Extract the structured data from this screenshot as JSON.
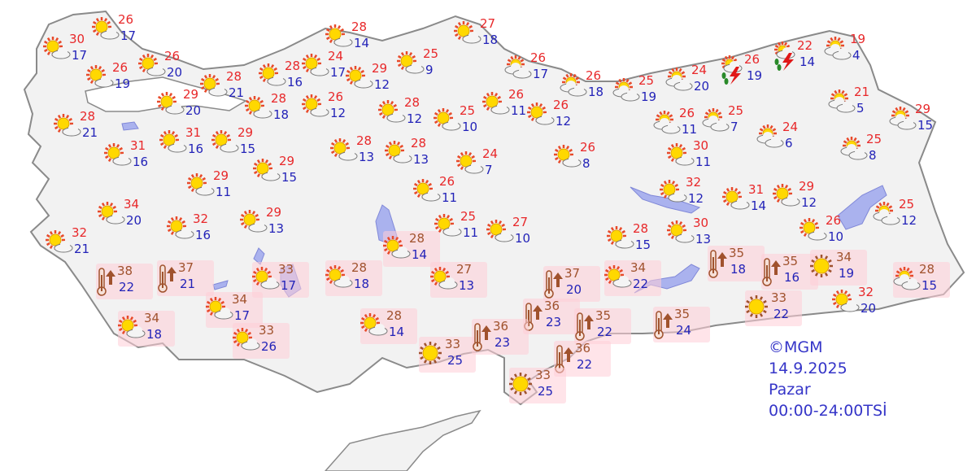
{
  "legend": {
    "source": "©MGM",
    "date": "14.9.2025",
    "day": "Pazar",
    "period": "00:00-24:00TSİ"
  },
  "colors": {
    "high": "#e8282a",
    "low": "#2323b8",
    "high_warning": "#a0522d",
    "warning_bg": "#ffd0d8",
    "land": "#f2f2f2",
    "lake": "#aab2ee"
  },
  "cities": [
    {
      "hi": "30",
      "lo": "17",
      "icon": "sun-cloud"
    },
    {
      "hi": "26",
      "lo": "17",
      "icon": "sun-cloud"
    },
    {
      "hi": "26",
      "lo": "19",
      "icon": "sun-cloud"
    },
    {
      "hi": "26",
      "lo": "20",
      "icon": "sun-cloud"
    },
    {
      "hi": "29",
      "lo": "20",
      "icon": "sun-cloud"
    },
    {
      "hi": "28",
      "lo": "21",
      "icon": "sun-cloud"
    },
    {
      "hi": "28",
      "lo": "21",
      "icon": "sun-cloud"
    },
    {
      "hi": "31",
      "lo": "16",
      "icon": "sun-cloud"
    },
    {
      "hi": "31",
      "lo": "16",
      "icon": "sun-cloud"
    },
    {
      "hi": "29",
      "lo": "15",
      "icon": "sun-cloud"
    },
    {
      "hi": "29",
      "lo": "15",
      "icon": "sun-cloud"
    },
    {
      "hi": "29",
      "lo": "11",
      "icon": "sun-cloud"
    },
    {
      "hi": "34",
      "lo": "20",
      "icon": "sun-cloud"
    },
    {
      "hi": "32",
      "lo": "16",
      "icon": "sun-cloud"
    },
    {
      "hi": "29",
      "lo": "13",
      "icon": "sun-cloud"
    },
    {
      "hi": "32",
      "lo": "21",
      "icon": "sun-cloud"
    },
    {
      "hi": "38",
      "lo": "22",
      "icon": "hot-thermometer",
      "warn": true
    },
    {
      "hi": "37",
      "lo": "21",
      "icon": "hot-thermometer",
      "warn": true
    },
    {
      "hi": "33",
      "lo": "17",
      "icon": "sun-cloud",
      "warn": true
    },
    {
      "hi": "34",
      "lo": "17",
      "icon": "sun-cloud",
      "warn": true
    },
    {
      "hi": "34",
      "lo": "18",
      "icon": "sun-cloud",
      "warn": true
    },
    {
      "hi": "33",
      "lo": "26",
      "icon": "sun-cloud",
      "warn": true
    },
    {
      "hi": "28",
      "lo": "18",
      "icon": "sun-cloud",
      "warn": true
    },
    {
      "hi": "28",
      "lo": "14",
      "icon": "sun-cloud",
      "warn": true
    },
    {
      "hi": "33",
      "lo": "25",
      "icon": "sunny",
      "warn": true
    },
    {
      "hi": "27",
      "lo": "13",
      "icon": "sun-cloud",
      "warn": true
    },
    {
      "hi": "28",
      "lo": "14",
      "icon": "sun-cloud",
      "warn": true
    },
    {
      "hi": "28",
      "lo": "14",
      "icon": "sun-cloud"
    },
    {
      "hi": "24",
      "lo": "17",
      "icon": "sun-cloud"
    },
    {
      "hi": "28",
      "lo": "16",
      "icon": "sun-cloud"
    },
    {
      "hi": "29",
      "lo": "12",
      "icon": "sun-cloud"
    },
    {
      "hi": "28",
      "lo": "18",
      "icon": "sun-cloud"
    },
    {
      "hi": "26",
      "lo": "12",
      "icon": "sun-cloud"
    },
    {
      "hi": "25",
      "lo": "9",
      "icon": "sun-cloud"
    },
    {
      "hi": "28",
      "lo": "12",
      "icon": "sun-cloud"
    },
    {
      "hi": "25",
      "lo": "10",
      "icon": "sun-cloud"
    },
    {
      "hi": "28",
      "lo": "13",
      "icon": "sun-cloud"
    },
    {
      "hi": "28",
      "lo": "13",
      "icon": "sun-cloud"
    },
    {
      "hi": "24",
      "lo": "7",
      "icon": "sun-cloud"
    },
    {
      "hi": "26",
      "lo": "11",
      "icon": "sun-cloud"
    },
    {
      "hi": "25",
      "lo": "11",
      "icon": "sun-cloud"
    },
    {
      "hi": "27",
      "lo": "10",
      "icon": "sun-cloud"
    },
    {
      "hi": "27",
      "lo": "18",
      "icon": "sun-cloud"
    },
    {
      "hi": "26",
      "lo": "17",
      "icon": "cloudy-sun"
    },
    {
      "hi": "26",
      "lo": "18",
      "icon": "cloudy-sun"
    },
    {
      "hi": "25",
      "lo": "19",
      "icon": "cloudy-sun"
    },
    {
      "hi": "26",
      "lo": "11",
      "icon": "sun-cloud"
    },
    {
      "hi": "26",
      "lo": "12",
      "icon": "sun-cloud"
    },
    {
      "hi": "26",
      "lo": "8",
      "icon": "sun-cloud"
    },
    {
      "hi": "24",
      "lo": "20",
      "icon": "cloudy-sun"
    },
    {
      "hi": "26",
      "lo": "19",
      "icon": "thunderstorm"
    },
    {
      "hi": "22",
      "lo": "14",
      "icon": "thunderstorm"
    },
    {
      "hi": "19",
      "lo": "4",
      "icon": "cloudy-sun"
    },
    {
      "hi": "26",
      "lo": "11",
      "icon": "cloudy-sun"
    },
    {
      "hi": "25",
      "lo": "7",
      "icon": "cloudy-sun"
    },
    {
      "hi": "24",
      "lo": "6",
      "icon": "cloudy-sun"
    },
    {
      "hi": "21",
      "lo": "5",
      "icon": "cloudy-sun"
    },
    {
      "hi": "29",
      "lo": "15",
      "icon": "cloudy-sun"
    },
    {
      "hi": "25",
      "lo": "8",
      "icon": "cloudy-sun"
    },
    {
      "hi": "30",
      "lo": "11",
      "icon": "sun-cloud"
    },
    {
      "hi": "32",
      "lo": "12",
      "icon": "sun-cloud"
    },
    {
      "hi": "31",
      "lo": "14",
      "icon": "sun-cloud"
    },
    {
      "hi": "29",
      "lo": "12",
      "icon": "sun-cloud"
    },
    {
      "hi": "26",
      "lo": "10",
      "icon": "sun-cloud"
    },
    {
      "hi": "25",
      "lo": "12",
      "icon": "cloudy-sun"
    },
    {
      "hi": "30",
      "lo": "13",
      "icon": "sun-cloud"
    },
    {
      "hi": "28",
      "lo": "15",
      "icon": "sun-cloud"
    },
    {
      "hi": "35",
      "lo": "18",
      "icon": "hot-thermometer",
      "warn": true
    },
    {
      "hi": "35",
      "lo": "16",
      "icon": "hot-thermometer",
      "warn": true
    },
    {
      "hi": "34",
      "lo": "19",
      "icon": "sunny",
      "warn": true
    },
    {
      "hi": "33",
      "lo": "22",
      "icon": "sunny",
      "warn": true
    },
    {
      "hi": "32",
      "lo": "20",
      "icon": "sun-cloud"
    },
    {
      "hi": "28",
      "lo": "15",
      "icon": "cloudy-sun",
      "warn": true
    },
    {
      "hi": "37",
      "lo": "20",
      "icon": "hot-thermometer",
      "warn": true
    },
    {
      "hi": "34",
      "lo": "22",
      "icon": "sun-cloud",
      "warn": true
    },
    {
      "hi": "36",
      "lo": "23",
      "icon": "hot-thermometer",
      "warn": true
    },
    {
      "hi": "36",
      "lo": "23",
      "icon": "hot-thermometer",
      "warn": true
    },
    {
      "hi": "35",
      "lo": "22",
      "icon": "hot-thermometer",
      "warn": true
    },
    {
      "hi": "35",
      "lo": "24",
      "icon": "hot-thermometer",
      "warn": true
    },
    {
      "hi": "36",
      "lo": "22",
      "icon": "hot-thermometer",
      "warn": true
    },
    {
      "hi": "33",
      "lo": "25",
      "icon": "sunny",
      "warn": true
    }
  ]
}
